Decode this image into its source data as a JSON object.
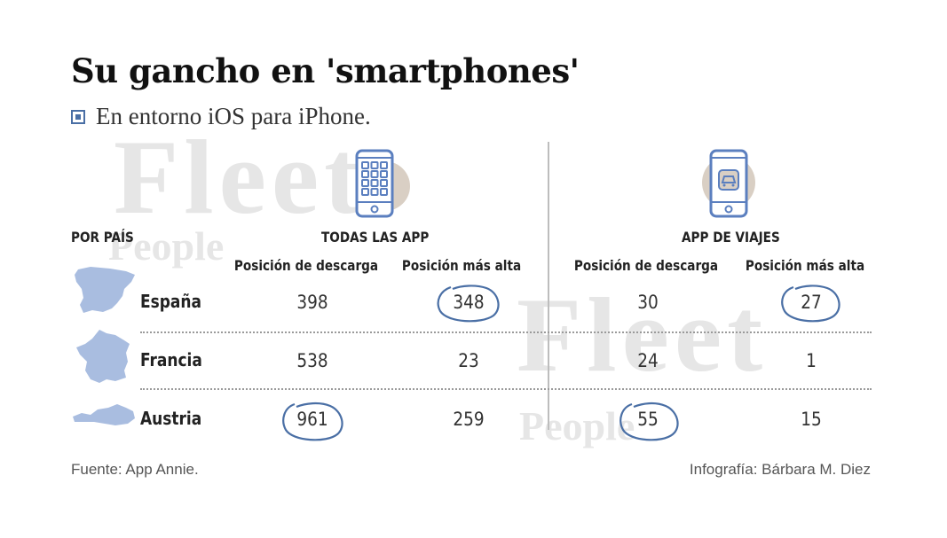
{
  "header": {
    "title": "Su gancho en 'smartphones'",
    "subtitle": "En entorno iOS para iPhone."
  },
  "watermark": {
    "word1": "Fleet",
    "word2": "People"
  },
  "table": {
    "row_header": "POR PAÍS",
    "groups": [
      {
        "name": "TODAS LAS APP",
        "icon": "phone-grid-icon",
        "col1": "Posición de descarga",
        "col2": "Posición más alta"
      },
      {
        "name": "APP DE VIAJES",
        "icon": "phone-car-icon",
        "col1": "Posición de descarga",
        "col2": "Posición más alta"
      }
    ]
  },
  "chart_data": {
    "type": "table",
    "title": "Su gancho en 'smartphones'",
    "subtitle": "En entorno iOS para iPhone.",
    "row_header": "POR PAÍS",
    "columns": [
      "TODAS LAS APP - Posición de descarga",
      "TODAS LAS APP - Posición más alta",
      "APP DE VIAJES - Posición de descarga",
      "APP DE VIAJES - Posición más alta"
    ],
    "rows": [
      {
        "country": "España",
        "values": [
          "398",
          "348",
          "30",
          "27"
        ]
      },
      {
        "country": "Francia",
        "values": [
          "538",
          "23",
          "24",
          "1"
        ]
      },
      {
        "country": "Austria",
        "values": [
          "961",
          "259",
          "55",
          "15"
        ]
      }
    ],
    "highlighted": [
      {
        "country": "España",
        "column": 1
      },
      {
        "country": "España",
        "column": 3
      },
      {
        "country": "Austria",
        "column": 0
      },
      {
        "country": "Austria",
        "column": 2
      }
    ]
  },
  "footer": {
    "source": "Fuente: App Annie.",
    "credit": "Infografía: Bárbara M. Diez"
  },
  "colors": {
    "accent": "#4a6fa5",
    "map_fill": "#a9bde0",
    "circle_bg": "#d9cfc4",
    "phone_stroke": "#5b7fbf"
  }
}
